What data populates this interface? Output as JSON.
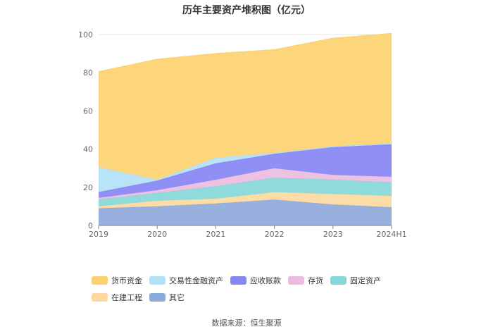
{
  "chart_data": {
    "type": "area",
    "stacked": true,
    "title": "历年主要资产堆积图（亿元）",
    "categories": [
      "2019",
      "2020",
      "2021",
      "2022",
      "2023",
      "2024H1"
    ],
    "ylim": [
      0,
      100
    ],
    "yticks": [
      0,
      20,
      40,
      60,
      80,
      100
    ],
    "grid": true,
    "legend_position": "bottom",
    "series": [
      {
        "name": "其它",
        "color": "#8ea9db",
        "values": [
          9,
          10,
          11.5,
          13.5,
          11,
          9.5
        ]
      },
      {
        "name": "在建工程",
        "color": "#fcd9a0",
        "values": [
          1,
          3,
          2.5,
          4,
          5.5,
          6
        ]
      },
      {
        "name": "固定资产",
        "color": "#85d8d8",
        "values": [
          3.5,
          4,
          6.5,
          7.5,
          7.5,
          7
        ]
      },
      {
        "name": "存货",
        "color": "#ebbcdf",
        "values": [
          1,
          1.5,
          3.5,
          5,
          2.5,
          3
        ]
      },
      {
        "name": "应收账款",
        "color": "#8585f4",
        "values": [
          3,
          5,
          8.5,
          7.5,
          14.5,
          17
        ]
      },
      {
        "name": "交易性金融资产",
        "color": "#b3e1f8",
        "values": [
          13,
          0.5,
          3,
          0.5,
          0.5,
          0.5
        ]
      },
      {
        "name": "货币资金",
        "color": "#fdd170",
        "values": [
          50,
          63,
          54.5,
          54,
          56.5,
          57.5
        ]
      }
    ]
  },
  "source": "数据来源：恒生聚源"
}
